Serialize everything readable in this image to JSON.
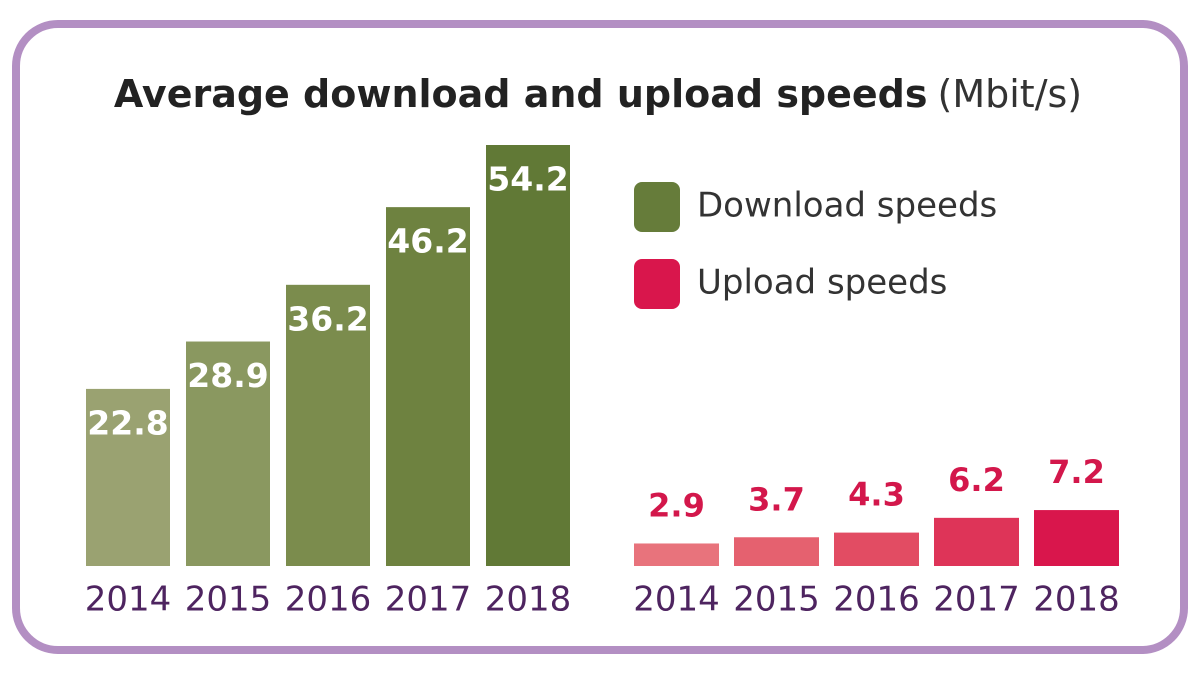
{
  "title": "Average download and upload speeds",
  "unit": "(Mbit/s)",
  "chart_data": [
    {
      "type": "bar",
      "name": "Download speeds",
      "legend_color": "#667c3a",
      "categories": [
        "2014",
        "2015",
        "2016",
        "2017",
        "2018"
      ],
      "values": [
        22.8,
        28.9,
        36.2,
        46.2,
        54.2
      ],
      "colors": [
        "#9aa271",
        "#8a9860",
        "#7b8c4d",
        "#6e8240",
        "#617936"
      ],
      "label_position": "inside"
    },
    {
      "type": "bar",
      "name": "Upload speeds",
      "legend_color": "#d9164c",
      "categories": [
        "2014",
        "2015",
        "2016",
        "2017",
        "2018"
      ],
      "values": [
        2.9,
        3.7,
        4.3,
        6.2,
        7.2
      ],
      "colors": [
        "#e8737c",
        "#e5616f",
        "#e24c63",
        "#de3458",
        "#d9164c"
      ],
      "label_position": "above"
    }
  ]
}
